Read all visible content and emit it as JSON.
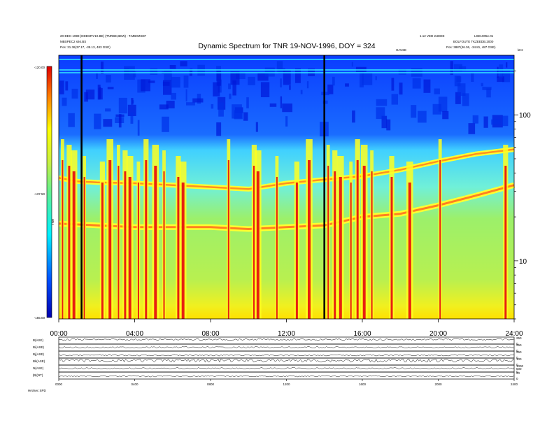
{
  "chart_data": {
    "type": "heatmap",
    "title": "Dynamic Spectrum for TNR 19-NOV-1996, DOY = 324",
    "header": {
      "left_line1": "20-DEC-1999 (DDDSRY10.BE) (TNRBE,BEW) - T.MBOZSEF",
      "left_line2": "MBSPEC2 s94.BS",
      "left_line3": "Pos:  31.36(37.17, -35.13, 483 GSE)",
      "right_line1": "1.12 VED 2UEDE",
      "right_line2": "BOLFOUTE TKZEEDB.2000",
      "right_line3": "Pos:  3887(46.36, -34.81, 487 GSE)",
      "right_corner": "LSE1005e.01",
      "top_label": "GAVSE",
      "unit_label": "kHz"
    },
    "x_axis": {
      "range_hours": [
        0,
        24
      ],
      "ticks": [
        "00:00",
        "04:00",
        "08:00",
        "12:00",
        "16:00",
        "20:00",
        "24:00"
      ]
    },
    "y_axis_right": {
      "label": "kHz",
      "scale": "log",
      "range_khz": [
        4.0,
        256
      ],
      "ticks": [
        "10",
        "100"
      ]
    },
    "colorbar": {
      "range_db": [
        -155.0,
        -120.0
      ],
      "tick_labels": [
        "-120.00",
        "-137.50",
        "-155.00"
      ],
      "label": "TNR"
    },
    "features": {
      "upper_band_khz": [
        [
          0,
          37
        ],
        [
          1,
          35
        ],
        [
          2,
          34.5
        ],
        [
          4,
          34
        ],
        [
          6,
          33
        ],
        [
          8,
          32
        ],
        [
          10,
          31
        ],
        [
          12,
          34
        ],
        [
          14,
          36
        ],
        [
          16,
          38
        ],
        [
          18,
          42
        ],
        [
          20,
          48
        ],
        [
          22,
          54
        ],
        [
          24,
          58
        ]
      ],
      "lower_band_khz": [
        [
          0,
          18
        ],
        [
          2,
          17.5
        ],
        [
          4,
          17
        ],
        [
          6,
          17
        ],
        [
          8,
          17
        ],
        [
          10,
          16.5
        ],
        [
          12,
          17
        ],
        [
          14,
          17.5
        ],
        [
          16,
          20
        ],
        [
          18,
          21
        ],
        [
          20,
          24
        ],
        [
          22,
          28
        ],
        [
          24,
          33
        ]
      ],
      "bursts_hours": [
        0.2,
        0.55,
        0.8,
        1.35,
        2.3,
        2.7,
        3.15,
        3.5,
        3.75,
        4.2,
        4.6,
        5.1,
        5.55,
        6.3,
        6.55,
        8.95,
        10.3,
        10.5,
        11.5,
        12.55,
        13.2,
        14.2,
        14.55,
        14.85,
        15.4,
        15.75,
        16.1,
        16.5,
        17.55,
        18.5,
        20.1,
        23.55
      ]
    },
    "panels": [
      {
        "label": "B(ASE)",
        "right_ticks": [
          "250",
          "0"
        ]
      },
      {
        "label": "Bi(ASE)",
        "right_ticks": [
          "250",
          "0"
        ]
      },
      {
        "label": "Bj(ASE)",
        "right_ticks": [
          "250",
          "0"
        ]
      },
      {
        "label": "Bk(ASE)",
        "right_ticks": [
          "100",
          "0"
        ]
      },
      {
        "label": "N(ASE)",
        "right_ticks": [
          "1000",
          "500",
          "0"
        ]
      },
      {
        "label": "|B|(NT)",
        "right_ticks": [
          "20",
          "0"
        ]
      }
    ],
    "bottom_ticks": [
      "0000",
      "0400",
      "0800",
      "1200",
      "1600",
      "2000",
      "2400"
    ],
    "bottom_left": "Hrs/sec  SPD"
  }
}
